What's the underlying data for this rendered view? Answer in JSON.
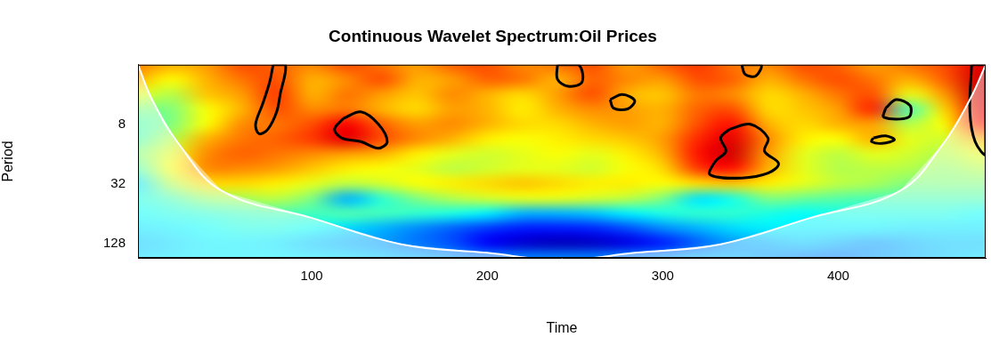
{
  "chart_data": {
    "type": "heatmap",
    "title": "Continuous Wavelet Spectrum:Oil Prices",
    "x_label": "Time",
    "y_label": "Period",
    "log": "y",
    "grid": false,
    "xlim": [
      1,
      484
    ],
    "xticks": [
      100,
      200,
      300,
      400
    ],
    "ylim": [
      2,
      180
    ],
    "yticks": [
      8,
      32,
      128
    ],
    "zlim": [
      0,
      1
    ],
    "x": [
      0,
      20,
      40,
      60,
      80,
      100,
      120,
      140,
      160,
      180,
      200,
      220,
      240,
      260,
      280,
      300,
      320,
      340,
      360,
      380,
      400,
      420,
      440,
      460,
      480
    ],
    "y": [
      2,
      2.8,
      4,
      5.7,
      8,
      11,
      16,
      23,
      32,
      45,
      64,
      91,
      128,
      180
    ],
    "z": [
      [
        0.75,
        0.7,
        0.72,
        0.8,
        0.78,
        0.74,
        0.8,
        0.76,
        0.72,
        0.78,
        0.8,
        0.74,
        0.76,
        0.8,
        0.72,
        0.78,
        0.82,
        0.76,
        0.74,
        0.8,
        0.78,
        0.72,
        0.76,
        0.8,
        0.9
      ],
      [
        0.7,
        0.62,
        0.7,
        0.76,
        0.8,
        0.7,
        0.74,
        0.8,
        0.7,
        0.72,
        0.78,
        0.76,
        0.7,
        0.78,
        0.74,
        0.72,
        0.8,
        0.78,
        0.7,
        0.76,
        0.8,
        0.76,
        0.7,
        0.78,
        0.92
      ],
      [
        0.6,
        0.55,
        0.68,
        0.72,
        0.82,
        0.7,
        0.76,
        0.72,
        0.68,
        0.74,
        0.7,
        0.66,
        0.72,
        0.8,
        0.7,
        0.68,
        0.76,
        0.74,
        0.66,
        0.7,
        0.76,
        0.8,
        0.6,
        0.72,
        0.92
      ],
      [
        0.5,
        0.5,
        0.62,
        0.7,
        0.8,
        0.74,
        0.76,
        0.7,
        0.66,
        0.72,
        0.7,
        0.64,
        0.7,
        0.74,
        0.72,
        0.7,
        0.78,
        0.8,
        0.66,
        0.68,
        0.72,
        0.84,
        0.45,
        0.66,
        0.9
      ],
      [
        0.45,
        0.5,
        0.62,
        0.74,
        0.76,
        0.8,
        0.88,
        0.78,
        0.72,
        0.74,
        0.7,
        0.66,
        0.66,
        0.7,
        0.72,
        0.7,
        0.8,
        0.86,
        0.7,
        0.66,
        0.7,
        0.72,
        0.55,
        0.62,
        0.85
      ],
      [
        0.45,
        0.55,
        0.7,
        0.76,
        0.78,
        0.82,
        0.9,
        0.8,
        0.74,
        0.7,
        0.64,
        0.62,
        0.64,
        0.66,
        0.68,
        0.72,
        0.84,
        0.9,
        0.74,
        0.64,
        0.62,
        0.7,
        0.6,
        0.58,
        0.7
      ],
      [
        0.5,
        0.6,
        0.74,
        0.78,
        0.76,
        0.74,
        0.72,
        0.7,
        0.64,
        0.6,
        0.58,
        0.6,
        0.62,
        0.6,
        0.64,
        0.7,
        0.86,
        0.92,
        0.72,
        0.6,
        0.56,
        0.6,
        0.58,
        0.55,
        0.6
      ],
      [
        0.45,
        0.62,
        0.74,
        0.74,
        0.72,
        0.68,
        0.64,
        0.62,
        0.6,
        0.56,
        0.58,
        0.6,
        0.6,
        0.58,
        0.62,
        0.66,
        0.82,
        0.86,
        0.7,
        0.6,
        0.55,
        0.56,
        0.55,
        0.52,
        0.55
      ],
      [
        0.35,
        0.55,
        0.66,
        0.66,
        0.64,
        0.6,
        0.56,
        0.58,
        0.62,
        0.64,
        0.66,
        0.68,
        0.66,
        0.64,
        0.64,
        0.62,
        0.66,
        0.68,
        0.64,
        0.6,
        0.56,
        0.54,
        0.5,
        0.5,
        0.5
      ],
      [
        0.4,
        0.45,
        0.52,
        0.54,
        0.56,
        0.5,
        0.3,
        0.42,
        0.5,
        0.55,
        0.58,
        0.6,
        0.6,
        0.58,
        0.56,
        0.5,
        0.35,
        0.4,
        0.5,
        0.48,
        0.46,
        0.45,
        0.45,
        0.45,
        0.45
      ],
      [
        0.38,
        0.4,
        0.42,
        0.44,
        0.45,
        0.44,
        0.45,
        0.44,
        0.42,
        0.4,
        0.36,
        0.3,
        0.3,
        0.32,
        0.36,
        0.4,
        0.42,
        0.42,
        0.4,
        0.38,
        0.4,
        0.4,
        0.4,
        0.4,
        0.38
      ],
      [
        0.35,
        0.36,
        0.38,
        0.4,
        0.4,
        0.38,
        0.34,
        0.3,
        0.26,
        0.22,
        0.18,
        0.15,
        0.15,
        0.16,
        0.2,
        0.26,
        0.3,
        0.34,
        0.36,
        0.36,
        0.36,
        0.36,
        0.35,
        0.35,
        0.35
      ],
      [
        0.32,
        0.34,
        0.36,
        0.36,
        0.35,
        0.32,
        0.3,
        0.28,
        0.24,
        0.2,
        0.12,
        0.08,
        0.06,
        0.07,
        0.1,
        0.15,
        0.22,
        0.28,
        0.3,
        0.32,
        0.3,
        0.28,
        0.3,
        0.32,
        0.32
      ],
      [
        0.34,
        0.35,
        0.36,
        0.36,
        0.36,
        0.35,
        0.34,
        0.32,
        0.3,
        0.28,
        0.26,
        0.25,
        0.25,
        0.25,
        0.26,
        0.28,
        0.3,
        0.3,
        0.28,
        0.26,
        0.25,
        0.28,
        0.3,
        0.32,
        0.34
      ]
    ],
    "coi": {
      "x": [
        1,
        9,
        24,
        49,
        100,
        151,
        200,
        242,
        284,
        333,
        384,
        435,
        460,
        475,
        484
      ],
      "y": [
        2,
        4.5,
        12.5,
        38,
        71,
        131,
        160,
        190,
        160,
        131,
        71,
        38,
        12.5,
        4.5,
        2
      ]
    },
    "contours": [
      {
        "x": [
          78,
          85,
          82,
          80,
          75,
          70,
          68,
          72,
          76
        ],
        "y": [
          2,
          2,
          4,
          6,
          9,
          10,
          8,
          5,
          3
        ]
      },
      {
        "x": [
          118,
          128,
          138,
          143,
          138,
          128,
          117,
          113
        ],
        "y": [
          7,
          6,
          8,
          12,
          14,
          12,
          11,
          9
        ]
      },
      {
        "x": [
          240,
          252,
          254,
          246,
          240
        ],
        "y": [
          2,
          2,
          3,
          3.3,
          2.8
        ]
      },
      {
        "x": [
          270,
          277,
          284,
          280,
          272
        ],
        "y": [
          4.5,
          4,
          4.6,
          5.6,
          5.5
        ]
      },
      {
        "x": [
          338,
          350,
          360,
          358,
          366,
          360,
          345,
          327,
          330,
          336,
          333
        ],
        "y": [
          9,
          8,
          11,
          15,
          20,
          25,
          28,
          26,
          19,
          15,
          11
        ]
      },
      {
        "x": [
          345,
          356,
          353,
          347
        ],
        "y": [
          2,
          2,
          2.6,
          2.5
        ]
      },
      {
        "x": [
          427,
          433,
          441,
          440,
          426
        ],
        "y": [
          5.5,
          4.5,
          5.2,
          6.8,
          6.8
        ]
      },
      {
        "x": [
          420,
          427,
          432,
          425,
          419
        ],
        "y": [
          11,
          10.5,
          11.5,
          12.5,
          12
        ]
      },
      {
        "x": [
          476,
          484,
          484,
          478,
          475
        ],
        "y": [
          2,
          2,
          16,
          12,
          6
        ]
      }
    ]
  }
}
